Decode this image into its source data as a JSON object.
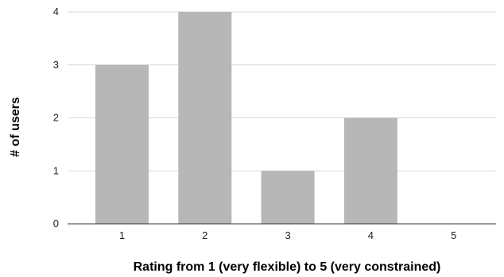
{
  "chart_data": {
    "type": "bar",
    "categories": [
      "1",
      "2",
      "3",
      "4",
      "5"
    ],
    "values": [
      3,
      4,
      1,
      2,
      0
    ],
    "title": "",
    "xlabel": "Rating from 1 (very flexible) to 5 (very constrained)",
    "ylabel": "# of users",
    "ylim": [
      0,
      4
    ],
    "yticks": [
      "0",
      "1",
      "2",
      "3",
      "4"
    ],
    "grid": true,
    "legend": "none",
    "colors": {
      "bar": "#b7b7b7",
      "grid": "#d9d9d9",
      "axis": "#333333"
    }
  }
}
